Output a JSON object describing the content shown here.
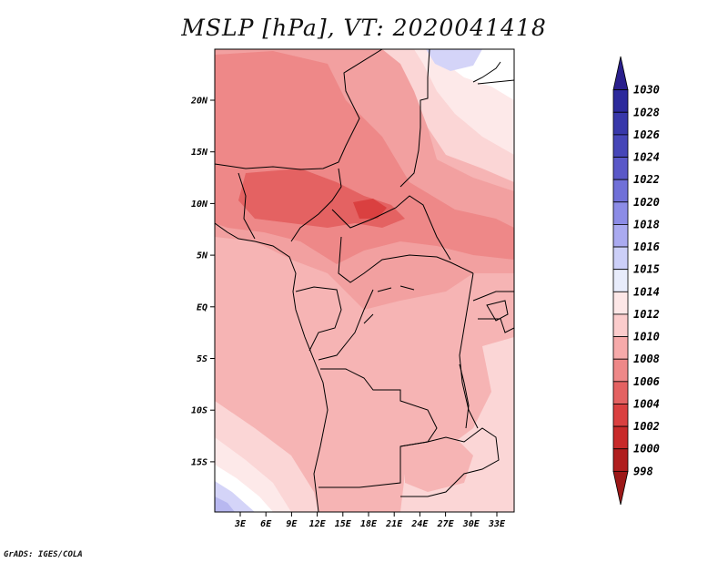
{
  "title": "MSLP [hPa], VT: 2020041418",
  "credit": "GrADS: IGES/COLA",
  "lat_labels": [
    "20N",
    "15N",
    "10N",
    "5N",
    "EQ",
    "5S",
    "10S",
    "15S"
  ],
  "lon_labels": [
    "3E",
    "6E",
    "9E",
    "12E",
    "15E",
    "18E",
    "21E",
    "24E",
    "27E",
    "30E",
    "33E"
  ],
  "colorbar": {
    "labels": [
      "1030",
      "1028",
      "1026",
      "1024",
      "1022",
      "1020",
      "1018",
      "1016",
      "1015",
      "1014",
      "1012",
      "1010",
      "1008",
      "1006",
      "1004",
      "1002",
      "1000",
      "998"
    ],
    "colors": [
      "#2a1f8c",
      "#2c2a9c",
      "#3838aa",
      "#4646b8",
      "#5a58c8",
      "#7070d8",
      "#8c8ce6",
      "#aaaaf0",
      "#cccff8",
      "#e8ecfb",
      "#fde7e7",
      "#fbcccc",
      "#f6aaaa",
      "#ee8888",
      "#e46262",
      "#da4040",
      "#c82a2a",
      "#b01e1e",
      "#9c1818"
    ]
  },
  "colors": {
    "p998": "#9c1818",
    "p1002": "#da4040",
    "p1004": "#e46262",
    "p1006": "#ee8888",
    "p1008": "#f2a0a0",
    "p1010": "#f6b4b4",
    "p1012": "#fbd6d6",
    "p1014": "#fde9e9",
    "p1015": "#ffffff",
    "p1016": "#d4d4f8",
    "p1018": "#b8b8f0"
  }
}
